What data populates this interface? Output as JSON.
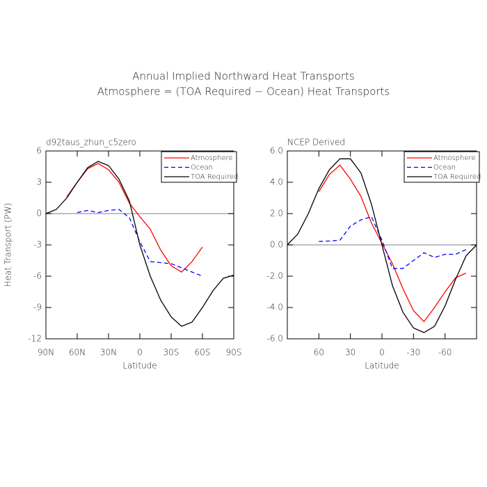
{
  "title": [
    "Annual Implied Northward Heat Transports",
    "Atmosphere = (TOA Required − Ocean) Heat Transports"
  ],
  "chart_data": [
    {
      "type": "line",
      "subtitle": "d92taus_zhun_c5zero",
      "x_label": "Latitude",
      "y_label": "Heat Transport (PW)",
      "x": [
        90,
        80,
        70,
        60,
        50,
        40,
        30,
        20,
        10,
        0,
        -10,
        -20,
        -30,
        -40,
        -50,
        -60,
        -70,
        -80,
        -90
      ],
      "xlim": [
        90,
        -90
      ],
      "xticks": [
        {
          "value": 90,
          "label": "90N"
        },
        {
          "value": 60,
          "label": "60N"
        },
        {
          "value": 30,
          "label": "30N"
        },
        0,
        {
          "value": -30,
          "label": "30S"
        },
        {
          "value": -60,
          "label": "60S"
        },
        {
          "value": -90,
          "label": "90S"
        }
      ],
      "ylim": [
        -12,
        6
      ],
      "yticks": [
        -12,
        -9,
        -6,
        -3,
        0,
        3,
        6
      ],
      "legend": "upper right",
      "series": [
        {
          "name": "Atmosphere",
          "color": "#ff0000",
          "dashed": false,
          "values": [
            null,
            null,
            1.6,
            3.0,
            4.3,
            4.8,
            4.2,
            3.0,
            1.0,
            -0.3,
            -1.5,
            -3.5,
            -5.0,
            -5.6,
            -4.6,
            -3.2,
            null,
            null,
            null
          ]
        },
        {
          "name": "Ocean",
          "color": "#0000ff",
          "dashed": true,
          "values": [
            null,
            null,
            null,
            0.1,
            0.3,
            0.1,
            0.3,
            0.4,
            -0.4,
            -2.7,
            -4.6,
            -4.7,
            -4.8,
            -5.2,
            -5.6,
            -6.0,
            null,
            null,
            null
          ]
        },
        {
          "name": "TOA Required",
          "color": "#000000",
          "dashed": false,
          "values": [
            0,
            0.4,
            1.5,
            3.0,
            4.4,
            5.0,
            4.6,
            3.3,
            1.2,
            -3.0,
            -6.0,
            -8.3,
            -9.9,
            -10.8,
            -10.4,
            -9.0,
            -7.4,
            -6.2,
            -5.9
          ]
        }
      ]
    },
    {
      "type": "line",
      "subtitle": "NCEP Derived",
      "x_label": "Latitude",
      "x": [
        90,
        80,
        70,
        60,
        50,
        40,
        30,
        20,
        10,
        0,
        -10,
        -20,
        -30,
        -40,
        -50,
        -60,
        -70,
        -80,
        -90
      ],
      "xlim": [
        90,
        -90
      ],
      "xticks": [
        60,
        30,
        0,
        -30,
        -60
      ],
      "ylim": [
        -6,
        6
      ],
      "yticks": [
        {
          "value": -6,
          "label": "-6.0"
        },
        {
          "value": -4,
          "label": "-4.0"
        },
        {
          "value": -2,
          "label": "-2.0"
        },
        {
          "value": 0,
          "label": "0.0"
        },
        {
          "value": 2,
          "label": "2.0"
        },
        {
          "value": 4,
          "label": "4.0"
        },
        {
          "value": 6,
          "label": "6.0"
        }
      ],
      "legend": "upper right",
      "series": [
        {
          "name": "Atmosphere",
          "color": "#ff0000",
          "dashed": false,
          "values": [
            null,
            null,
            null,
            3.4,
            4.5,
            5.1,
            4.2,
            3.1,
            1.4,
            0.1,
            -1.2,
            -2.8,
            -4.2,
            -4.9,
            -4.0,
            -3.0,
            -2.1,
            -1.8,
            null
          ]
        },
        {
          "name": "Ocean",
          "color": "#0000ff",
          "dashed": true,
          "values": [
            null,
            null,
            null,
            0.22,
            0.25,
            0.3,
            1.2,
            1.6,
            1.8,
            0.3,
            -1.5,
            -1.5,
            -1.0,
            -0.5,
            -0.8,
            -0.6,
            -0.6,
            -0.3,
            null
          ]
        },
        {
          "name": "TOA Required",
          "color": "#000000",
          "dashed": false,
          "values": [
            0,
            0.7,
            2.0,
            3.6,
            4.8,
            5.5,
            5.5,
            4.6,
            2.6,
            0,
            -2.6,
            -4.3,
            -5.3,
            -5.6,
            -5.2,
            -3.9,
            -2.2,
            -0.7,
            0
          ]
        }
      ]
    }
  ]
}
